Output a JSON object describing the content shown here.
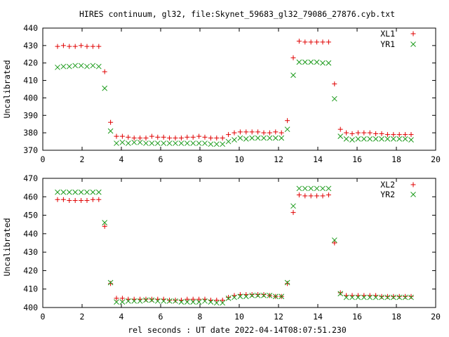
{
  "title": "HIRES continuum, gl32, file:Skynet_59683_gl32_79086_27876.cyb.txt",
  "xlabel": "rel seconds : UT date 2022-04-14T08:07:51.230",
  "colors": {
    "series1": "#e00000",
    "series2": "#1a9a1a",
    "axis": "#000000",
    "grid": "#777777"
  },
  "chart_data": [
    {
      "type": "scatter",
      "ylabel": "Uncalibrated",
      "xlim": [
        0,
        20
      ],
      "ylim": [
        370,
        440
      ],
      "xticks": [
        "0",
        "2",
        "4",
        "6",
        "8",
        "10",
        "12",
        "14",
        "16",
        "18",
        "20"
      ],
      "yticks": [
        "370",
        "380",
        "390",
        "400",
        "410",
        "420",
        "430",
        "440"
      ],
      "legend_position": "top-right",
      "series": [
        {
          "name": "XL1",
          "marker": "plus",
          "x": [
            0.75,
            1.05,
            1.35,
            1.65,
            1.95,
            2.25,
            2.55,
            2.85,
            3.15,
            3.45,
            3.75,
            4.05,
            4.35,
            4.65,
            4.95,
            5.25,
            5.55,
            5.85,
            6.15,
            6.45,
            6.75,
            7.05,
            7.35,
            7.65,
            7.95,
            8.25,
            8.55,
            8.85,
            9.15,
            9.45,
            9.75,
            10.05,
            10.35,
            10.65,
            10.95,
            11.25,
            11.55,
            11.85,
            12.15,
            12.45,
            12.75,
            13.05,
            13.35,
            13.65,
            13.95,
            14.25,
            14.55,
            14.85,
            15.15,
            15.45,
            15.75,
            16.05,
            16.35,
            16.65,
            16.95,
            17.25,
            17.55,
            17.85,
            18.15,
            18.45,
            18.75
          ],
          "y": [
            429.5,
            430,
            429.5,
            429.5,
            430,
            429.5,
            429.5,
            429.5,
            415,
            386,
            378,
            378,
            377.5,
            377,
            377,
            377,
            378,
            377.5,
            377.5,
            377,
            377,
            377,
            377.5,
            377.5,
            378,
            377.5,
            377,
            377,
            377,
            379,
            380,
            380.5,
            380.5,
            380.5,
            380.5,
            380,
            380,
            380.5,
            380,
            387,
            423,
            432.5,
            432,
            432,
            432,
            432,
            432,
            408,
            382,
            380,
            379.5,
            380,
            380,
            380,
            379.5,
            379.5,
            379,
            379,
            379,
            379,
            379
          ]
        },
        {
          "name": "YR1",
          "marker": "cross",
          "x": [
            0.75,
            1.05,
            1.35,
            1.65,
            1.95,
            2.25,
            2.55,
            2.85,
            3.15,
            3.45,
            3.75,
            4.05,
            4.35,
            4.65,
            4.95,
            5.25,
            5.55,
            5.85,
            6.15,
            6.45,
            6.75,
            7.05,
            7.35,
            7.65,
            7.95,
            8.25,
            8.55,
            8.85,
            9.15,
            9.45,
            9.75,
            10.05,
            10.35,
            10.65,
            10.95,
            11.25,
            11.55,
            11.85,
            12.15,
            12.45,
            12.75,
            13.05,
            13.35,
            13.65,
            13.95,
            14.25,
            14.55,
            14.85,
            15.15,
            15.45,
            15.75,
            16.05,
            16.35,
            16.65,
            16.95,
            17.25,
            17.55,
            17.85,
            18.15,
            18.45,
            18.75
          ],
          "y": [
            417.5,
            418,
            418,
            418.5,
            418.5,
            418,
            418.5,
            418,
            405.5,
            381,
            374,
            374.5,
            374,
            374.5,
            374.5,
            374,
            374,
            374,
            374,
            374,
            374,
            374,
            374,
            374,
            374,
            374,
            373.5,
            373.5,
            373.5,
            375,
            376,
            377,
            376.5,
            377,
            377,
            377,
            377,
            377,
            377,
            382,
            413,
            420.5,
            420.5,
            420.5,
            420.5,
            420,
            420,
            399.5,
            378,
            376.5,
            376,
            376.5,
            376.5,
            376.5,
            376.5,
            376.5,
            376.5,
            376.5,
            376.5,
            376.5,
            376
          ]
        }
      ]
    },
    {
      "type": "scatter",
      "ylabel": "Uncalibrated",
      "xlabel": "rel seconds : UT date 2022-04-14T08:07:51.230",
      "xlim": [
        0,
        20
      ],
      "ylim": [
        400,
        470
      ],
      "xticks": [
        "0",
        "2",
        "4",
        "6",
        "8",
        "10",
        "12",
        "14",
        "16",
        "18",
        "20"
      ],
      "yticks": [
        "400",
        "410",
        "420",
        "430",
        "440",
        "450",
        "460",
        "470"
      ],
      "legend_position": "top-right",
      "series": [
        {
          "name": "XL2",
          "marker": "plus",
          "x": [
            0.75,
            1.05,
            1.35,
            1.65,
            1.95,
            2.25,
            2.55,
            2.85,
            3.15,
            3.45,
            3.75,
            4.05,
            4.35,
            4.65,
            4.95,
            5.25,
            5.55,
            5.85,
            6.15,
            6.45,
            6.75,
            7.05,
            7.35,
            7.65,
            7.95,
            8.25,
            8.55,
            8.85,
            9.15,
            9.45,
            9.75,
            10.05,
            10.35,
            10.65,
            10.95,
            11.25,
            11.55,
            11.85,
            12.15,
            12.45,
            12.75,
            13.05,
            13.35,
            13.65,
            13.95,
            14.25,
            14.55,
            14.85,
            15.15,
            15.45,
            15.75,
            16.05,
            16.35,
            16.65,
            16.95,
            17.25,
            17.55,
            17.85,
            18.15,
            18.45,
            18.75
          ],
          "y": [
            458.5,
            458.5,
            458,
            458,
            458,
            458,
            458.5,
            458.5,
            444,
            413,
            405,
            405,
            404.5,
            404.5,
            404.5,
            404.5,
            404.5,
            404.5,
            404.5,
            404,
            404,
            404,
            404.5,
            404.5,
            404.5,
            404.5,
            404,
            404,
            404,
            405.5,
            406.5,
            407,
            407,
            407,
            407,
            407,
            406.5,
            406,
            406,
            413,
            451.5,
            461,
            460.5,
            460.5,
            460.5,
            460.5,
            461,
            435,
            408,
            406.5,
            406.5,
            406.5,
            406.5,
            406.5,
            406.5,
            406,
            406,
            406,
            406,
            406,
            406
          ]
        },
        {
          "name": "YR2",
          "marker": "cross",
          "x": [
            0.75,
            1.05,
            1.35,
            1.65,
            1.95,
            2.25,
            2.55,
            2.85,
            3.15,
            3.45,
            3.75,
            4.05,
            4.35,
            4.65,
            4.95,
            5.25,
            5.55,
            5.85,
            6.15,
            6.45,
            6.75,
            7.05,
            7.35,
            7.65,
            7.95,
            8.25,
            8.55,
            8.85,
            9.15,
            9.45,
            9.75,
            10.05,
            10.35,
            10.65,
            10.95,
            11.25,
            11.55,
            11.85,
            12.15,
            12.45,
            12.75,
            13.05,
            13.35,
            13.65,
            13.95,
            14.25,
            14.55,
            14.85,
            15.15,
            15.45,
            15.75,
            16.05,
            16.35,
            16.65,
            16.95,
            17.25,
            17.55,
            17.85,
            18.15,
            18.45,
            18.75
          ],
          "y": [
            462.5,
            462.5,
            462.5,
            462.5,
            462.5,
            462.5,
            462.5,
            462.5,
            446,
            413.5,
            403,
            403,
            403.5,
            403.5,
            403.5,
            404,
            404,
            403.5,
            403.5,
            403.5,
            403.5,
            403,
            403,
            403,
            403,
            403.5,
            403,
            402.5,
            402.5,
            405,
            405.5,
            406,
            406,
            406.5,
            406.5,
            406.5,
            406.5,
            406,
            406,
            413.5,
            455,
            464.5,
            464.5,
            464.5,
            464.5,
            464.5,
            464.5,
            436.5,
            407.5,
            405.5,
            405.5,
            405.5,
            405.5,
            405.5,
            405.5,
            405.5,
            405.5,
            405.5,
            405.5,
            405.5,
            405.5
          ]
        }
      ]
    }
  ]
}
